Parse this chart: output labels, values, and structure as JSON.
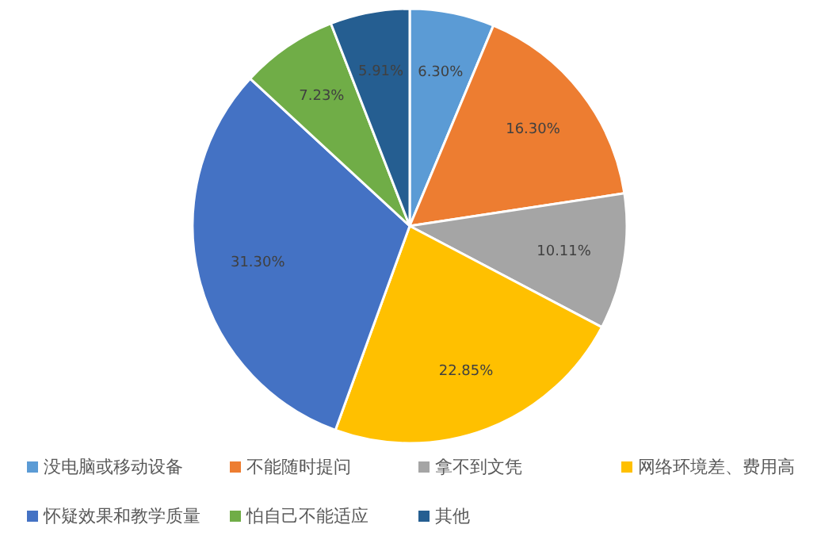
{
  "chart_data": {
    "type": "pie",
    "categories": [
      "没电脑或移动设备",
      "不能随时提问",
      "拿不到文凭",
      "网络环境差、费用高",
      "怀疑效果和教学质量",
      "怕自己不能适应",
      "其他"
    ],
    "values": [
      6.3,
      16.3,
      10.11,
      22.85,
      31.3,
      7.23,
      5.91
    ],
    "value_labels": [
      "6.30%",
      "16.30%",
      "10.11%",
      "22.85%",
      "31.30%",
      "7.23%",
      "5.91%"
    ],
    "colors": [
      "#5b9bd5",
      "#ed7d31",
      "#a5a5a5",
      "#ffc000",
      "#4472c4",
      "#70ad47",
      "#255e91"
    ],
    "legend": "bottom"
  }
}
